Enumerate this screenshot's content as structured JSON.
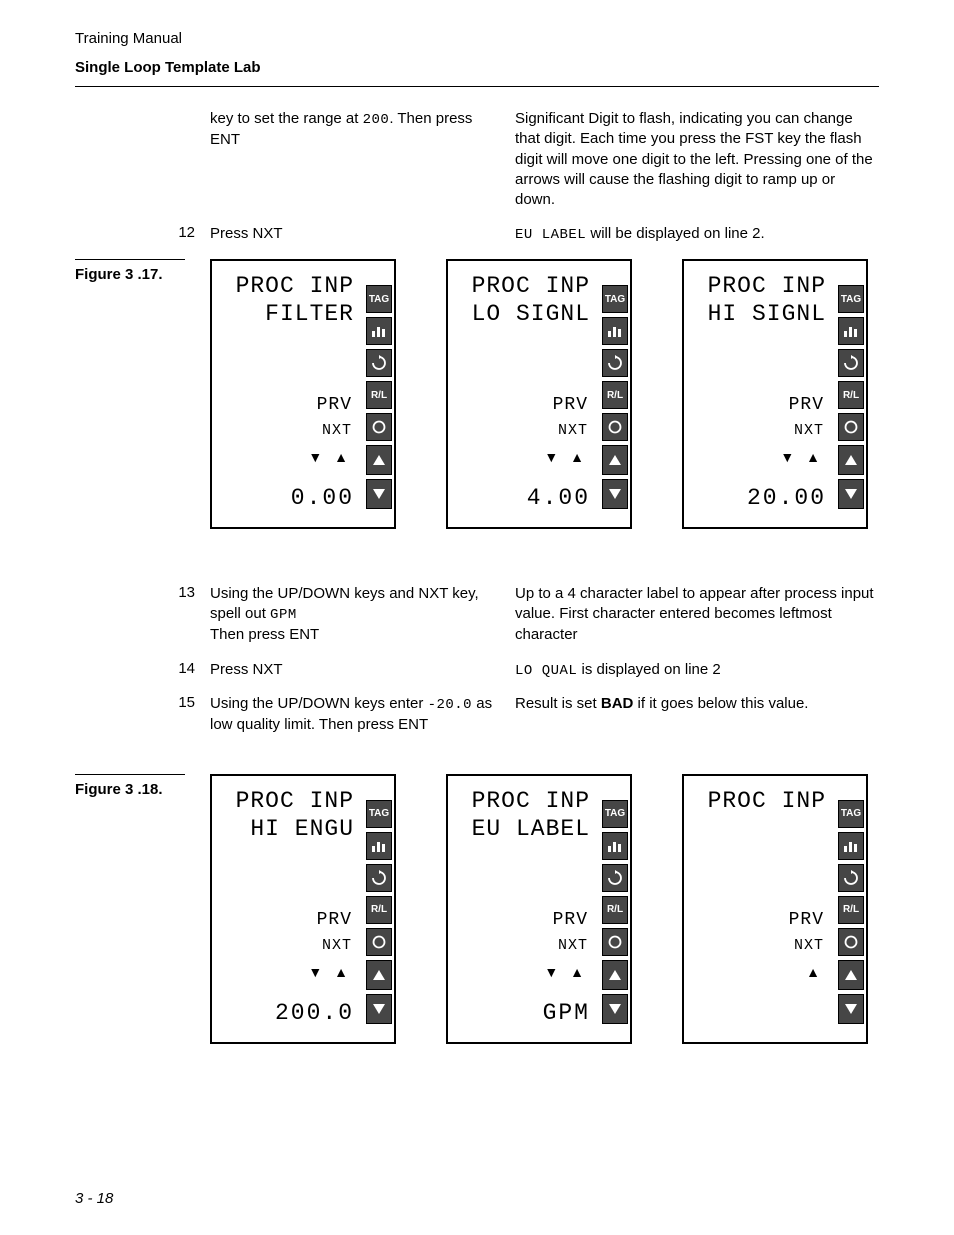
{
  "header": {
    "line1": "Training Manual",
    "line2": "Single Loop Template Lab"
  },
  "intro": {
    "left": "key to set the range at ",
    "left_lcd": "200",
    "left2": ".  Then press ENT",
    "right": "Significant Digit to flash, indicating you can change that digit.  Each time you press the FST key the flash digit will move one digit to the left. Pressing one of the arrows will cause the flashing digit to ramp up or down."
  },
  "steps": [
    {
      "num": "12",
      "left": "Press NXT",
      "right_pre_lcd": "",
      "right_lcd": "EU LABEL",
      "right_post_lcd": " will be displayed on line 2."
    },
    {
      "num": "13",
      "left": "Using the UP/DOWN keys and NXT key, spell out ",
      "left_lcd": "GPM",
      "left2": "\nThen press ENT",
      "right": "Up to a 4 character label to appear after process input value. First character entered becomes leftmost character"
    },
    {
      "num": "14",
      "left": "Press NXT",
      "right_pre_lcd": "",
      "right_lcd": "LO QUAL",
      "right_post_lcd": " is displayed on line 2"
    },
    {
      "num": "15",
      "left": "Using the UP/DOWN keys enter ",
      "left_lcd": "-20.0",
      "left2": " as low quality limit.  Then press ENT",
      "right_pre": "Result is set ",
      "right_bold": "BAD",
      "right_post": " if it goes below this value."
    }
  ],
  "figures": [
    {
      "label": "Figure 3 .17.",
      "panels": [
        {
          "line1": "PROC INP",
          "line2": "FILTER",
          "prv": "PRV",
          "nxt": "NXT",
          "arrows": "▼ ▲",
          "value": "0.00"
        },
        {
          "line1": "PROC INP",
          "line2": "LO SIGNL",
          "prv": "PRV",
          "nxt": "NXT",
          "arrows": "▼ ▲",
          "value": "4.00"
        },
        {
          "line1": "PROC INP",
          "line2": "HI SIGNL",
          "prv": "PRV",
          "nxt": "NXT",
          "arrows": "▼ ▲",
          "value": "20.00"
        }
      ]
    },
    {
      "label": "Figure 3 .18.",
      "panels": [
        {
          "line1": "PROC INP",
          "line2": "HI ENGU",
          "prv": "PRV",
          "nxt": "NXT",
          "arrows": "▼ ▲",
          "value": "200.0"
        },
        {
          "line1": "PROC INP",
          "line2": "EU LABEL",
          "prv": "PRV",
          "nxt": "NXT",
          "arrows": "▼ ▲",
          "value": "GPM"
        },
        {
          "line1": "PROC INP",
          "line2": "",
          "prv": "PRV",
          "nxt": "NXT",
          "arrows": "▲",
          "value": ""
        }
      ]
    }
  ],
  "buttons": {
    "tag": "TAG",
    "rl": "R/L"
  },
  "footer": "3 - 18"
}
